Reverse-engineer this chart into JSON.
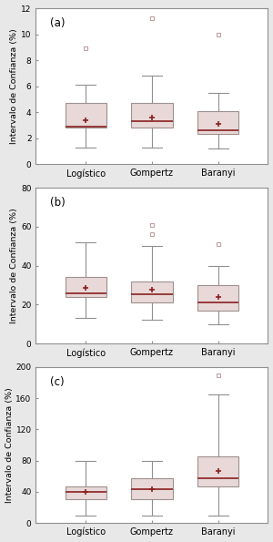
{
  "panels": [
    {
      "label": "(a)",
      "ylim": [
        0,
        12
      ],
      "yticks": [
        0,
        2,
        4,
        6,
        8,
        10,
        12
      ],
      "boxes": [
        {
          "q1": 2.8,
          "median": 2.9,
          "q3": 4.7,
          "whislo": 1.3,
          "whishi": 6.1,
          "mean": 3.4,
          "fliers": [
            8.9
          ]
        },
        {
          "q1": 2.8,
          "median": 3.3,
          "q3": 4.7,
          "whislo": 1.3,
          "whishi": 6.8,
          "mean": 3.6,
          "fliers": [
            11.2
          ]
        },
        {
          "q1": 2.3,
          "median": 2.6,
          "q3": 4.1,
          "whislo": 1.2,
          "whishi": 5.5,
          "mean": 3.1,
          "fliers": [
            10.0
          ]
        }
      ]
    },
    {
      "label": "(b)",
      "ylim": [
        0,
        80
      ],
      "yticks": [
        0,
        20,
        40,
        60,
        80
      ],
      "boxes": [
        {
          "q1": 24.0,
          "median": 26.0,
          "q3": 34.0,
          "whislo": 13.0,
          "whishi": 52.0,
          "mean": 28.5,
          "fliers": []
        },
        {
          "q1": 21.0,
          "median": 25.5,
          "q3": 32.0,
          "whislo": 12.0,
          "whishi": 50.0,
          "mean": 27.5,
          "fliers": [
            56.0,
            61.0
          ]
        },
        {
          "q1": 17.0,
          "median": 21.0,
          "q3": 30.0,
          "whislo": 10.0,
          "whishi": 40.0,
          "mean": 24.0,
          "fliers": [
            51.0
          ]
        }
      ]
    },
    {
      "label": "(c)",
      "ylim": [
        0,
        200
      ],
      "yticks": [
        0,
        40,
        80,
        120,
        160,
        200
      ],
      "boxes": [
        {
          "q1": 30.0,
          "median": 40.0,
          "q3": 47.0,
          "whislo": 10.0,
          "whishi": 80.0,
          "mean": 40.0,
          "fliers": []
        },
        {
          "q1": 30.0,
          "median": 43.0,
          "q3": 57.0,
          "whislo": 10.0,
          "whishi": 80.0,
          "mean": 43.0,
          "fliers": []
        },
        {
          "q1": 47.0,
          "median": 57.0,
          "q3": 85.0,
          "whislo": 10.0,
          "whishi": 165.0,
          "mean": 67.0,
          "fliers": [
            190.0
          ]
        }
      ]
    }
  ],
  "categories": [
    "Logístico",
    "Gompertz",
    "Baranyi"
  ],
  "ylabel": "Intervalo de Confianza (%)",
  "box_facecolor": "#e8d8d8",
  "box_edgecolor": "#a09090",
  "median_color": "#8b2020",
  "whisker_color": "#909090",
  "cap_color": "#909090",
  "mean_marker_color": "#8b2020",
  "flier_edge_color": "#c0a0a0",
  "background_color": "#ffffff",
  "fig_background": "#e8e8e8"
}
